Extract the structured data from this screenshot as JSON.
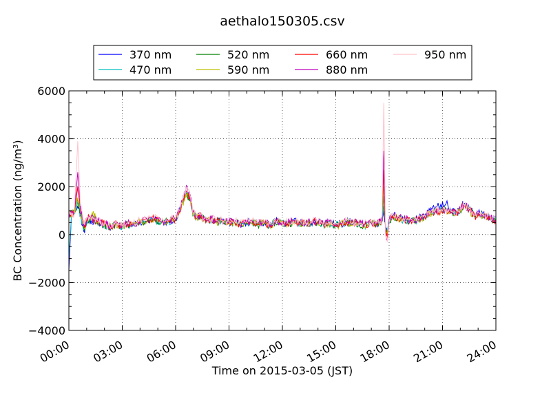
{
  "chart_data": {
    "type": "line",
    "title": "aethalo150305.csv",
    "xlabel": "Time on 2015-03-05 (JST)",
    "ylabel_main": "BC Concentration (ng/m",
    "ylabel_sup": "3",
    "ylabel_close": ")",
    "xlim": [
      0,
      24
    ],
    "ylim": [
      -4000,
      6000
    ],
    "grid": true,
    "legend_position": "top",
    "x_ticks": [
      0,
      3,
      6,
      9,
      12,
      15,
      18,
      21,
      24
    ],
    "x_tick_labels": [
      "00:00",
      "03:00",
      "06:00",
      "09:00",
      "12:00",
      "15:00",
      "18:00",
      "21:00",
      "24:00"
    ],
    "y_ticks": [
      -4000,
      -2000,
      0,
      2000,
      4000,
      6000
    ],
    "y_tick_labels": [
      "−4000",
      "−2000",
      "0",
      "2000",
      "4000",
      "6000"
    ],
    "x_hours": [
      0.0,
      0.15,
      0.3,
      0.5,
      0.65,
      0.8,
      0.9,
      1.0,
      1.2,
      1.4,
      1.6,
      1.8,
      2.0,
      2.2,
      2.4,
      2.6,
      2.8,
      3.0,
      3.3,
      3.6,
      4.0,
      4.4,
      4.8,
      5.2,
      5.6,
      6.0,
      6.2,
      6.4,
      6.6,
      6.8,
      7.0,
      7.2,
      7.4,
      7.6,
      7.8,
      8.0,
      8.3,
      8.6,
      9.0,
      9.3,
      9.6,
      10.0,
      10.3,
      10.6,
      11.0,
      11.3,
      11.6,
      12.0,
      12.3,
      12.6,
      13.0,
      13.3,
      13.6,
      14.0,
      14.3,
      14.6,
      15.0,
      15.3,
      15.6,
      16.0,
      16.3,
      16.6,
      17.0,
      17.3,
      17.5,
      17.6,
      17.7,
      17.8,
      17.9,
      18.0,
      18.2,
      18.5,
      18.8,
      19.2,
      19.6,
      20.0,
      20.3,
      20.6,
      20.9,
      21.2,
      21.5,
      21.8,
      22.0,
      22.2,
      22.5,
      22.8,
      23.1,
      23.4,
      23.7,
      24.0
    ],
    "series": [
      {
        "name": "370 nm",
        "color": "#0000ff",
        "values": [
          -1500,
          900,
          1000,
          1200,
          800,
          300,
          200,
          500,
          600,
          550,
          500,
          450,
          400,
          350,
          300,
          450,
          400,
          350,
          450,
          400,
          500,
          550,
          600,
          500,
          550,
          600,
          1000,
          1400,
          1800,
          1600,
          900,
          700,
          800,
          650,
          600,
          650,
          550,
          600,
          500,
          550,
          450,
          500,
          550,
          450,
          500,
          400,
          550,
          500,
          450,
          550,
          500,
          450,
          500,
          550,
          450,
          500,
          400,
          450,
          550,
          500,
          450,
          400,
          500,
          450,
          550,
          600,
          1000,
          300,
          100,
          600,
          800,
          700,
          650,
          600,
          650,
          800,
          1000,
          1150,
          1250,
          1300,
          1000,
          900,
          1100,
          1300,
          1100,
          800,
          900,
          800,
          700,
          600
        ]
      },
      {
        "name": "470 nm",
        "color": "#00bfbf",
        "values": [
          -1000,
          880,
          950,
          1300,
          850,
          350,
          250,
          550,
          600,
          550,
          500,
          480,
          400,
          330,
          300,
          430,
          380,
          330,
          430,
          400,
          520,
          560,
          620,
          480,
          540,
          620,
          950,
          1350,
          1750,
          1550,
          850,
          680,
          780,
          640,
          580,
          630,
          520,
          580,
          480,
          530,
          440,
          480,
          530,
          430,
          480,
          380,
          530,
          480,
          440,
          520,
          480,
          430,
          480,
          520,
          430,
          480,
          380,
          430,
          520,
          480,
          430,
          380,
          480,
          430,
          520,
          580,
          1200,
          250,
          50,
          580,
          760,
          680,
          620,
          580,
          620,
          750,
          900,
          1000,
          1050,
          1100,
          950,
          880,
          1050,
          1250,
          1050,
          780,
          860,
          780,
          680,
          580
        ]
      },
      {
        "name": "520 nm",
        "color": "#008000",
        "values": [
          800,
          870,
          940,
          1400,
          900,
          400,
          300,
          600,
          620,
          800,
          500,
          500,
          420,
          350,
          300,
          420,
          380,
          350,
          420,
          410,
          530,
          570,
          640,
          500,
          560,
          640,
          950,
          1300,
          1700,
          1500,
          850,
          700,
          760,
          630,
          570,
          620,
          510,
          570,
          470,
          520,
          430,
          470,
          520,
          420,
          470,
          370,
          520,
          470,
          430,
          510,
          470,
          420,
          470,
          510,
          420,
          470,
          370,
          420,
          510,
          470,
          420,
          370,
          470,
          420,
          510,
          570,
          1600,
          200,
          0,
          570,
          750,
          670,
          610,
          570,
          610,
          740,
          880,
          960,
          1000,
          1050,
          920,
          860,
          1030,
          1230,
          1030,
          770,
          850,
          770,
          670,
          570
        ]
      },
      {
        "name": "590 nm",
        "color": "#bfbf00",
        "values": [
          820,
          860,
          930,
          1500,
          950,
          450,
          350,
          600,
          650,
          900,
          520,
          510,
          430,
          360,
          310,
          430,
          390,
          360,
          430,
          420,
          540,
          580,
          650,
          510,
          570,
          650,
          960,
          1300,
          1700,
          1500,
          860,
          710,
          770,
          640,
          580,
          630,
          520,
          580,
          480,
          530,
          440,
          480,
          530,
          430,
          480,
          380,
          530,
          480,
          440,
          520,
          480,
          430,
          480,
          520,
          430,
          480,
          380,
          430,
          520,
          480,
          430,
          380,
          480,
          430,
          520,
          580,
          2000,
          150,
          -50,
          580,
          760,
          680,
          620,
          580,
          620,
          750,
          880,
          950,
          980,
          1020,
          900,
          850,
          1020,
          1220,
          1020,
          760,
          840,
          760,
          660,
          560
        ]
      },
      {
        "name": "660 nm",
        "color": "#ff0000",
        "values": [
          850,
          850,
          920,
          2000,
          1000,
          500,
          350,
          650,
          700,
          600,
          550,
          520,
          450,
          380,
          320,
          450,
          400,
          370,
          450,
          430,
          560,
          600,
          670,
          520,
          580,
          660,
          980,
          1350,
          1800,
          1550,
          880,
          720,
          790,
          650,
          600,
          650,
          540,
          600,
          500,
          550,
          450,
          500,
          550,
          450,
          500,
          400,
          550,
          500,
          450,
          540,
          500,
          450,
          500,
          540,
          450,
          500,
          400,
          450,
          540,
          500,
          450,
          400,
          500,
          450,
          540,
          600,
          2700,
          100,
          -100,
          600,
          780,
          700,
          640,
          600,
          640,
          770,
          900,
          970,
          1000,
          1040,
          920,
          870,
          1040,
          1240,
          1040,
          780,
          860,
          780,
          680,
          580
        ]
      },
      {
        "name": "880 nm",
        "color": "#bf00bf",
        "values": [
          870,
          850,
          900,
          2600,
          1100,
          550,
          400,
          680,
          720,
          650,
          570,
          540,
          460,
          390,
          330,
          460,
          410,
          380,
          460,
          440,
          580,
          620,
          690,
          540,
          600,
          680,
          1000,
          1400,
          2050,
          1650,
          900,
          740,
          810,
          670,
          620,
          670,
          560,
          620,
          520,
          570,
          470,
          520,
          570,
          470,
          520,
          420,
          570,
          520,
          470,
          560,
          520,
          470,
          520,
          560,
          470,
          520,
          420,
          470,
          560,
          520,
          470,
          420,
          520,
          470,
          560,
          620,
          3500,
          50,
          -200,
          620,
          800,
          720,
          660,
          620,
          660,
          790,
          920,
          990,
          1020,
          1060,
          940,
          890,
          1060,
          1260,
          1060,
          800,
          880,
          800,
          700,
          600
        ]
      },
      {
        "name": "950 nm",
        "color": "#ffc0cb",
        "values": [
          880,
          840,
          880,
          3900,
          1200,
          600,
          450,
          700,
          750,
          700,
          600,
          560,
          480,
          400,
          340,
          480,
          420,
          390,
          480,
          450,
          600,
          640,
          710,
          560,
          620,
          700,
          1020,
          1450,
          2000,
          1700,
          920,
          760,
          830,
          690,
          640,
          690,
          580,
          640,
          540,
          590,
          490,
          540,
          590,
          490,
          540,
          440,
          590,
          540,
          490,
          580,
          540,
          490,
          540,
          580,
          490,
          540,
          440,
          490,
          580,
          540,
          490,
          440,
          540,
          490,
          580,
          640,
          5500,
          0,
          -300,
          640,
          820,
          740,
          680,
          640,
          680,
          810,
          940,
          1010,
          1040,
          1080,
          960,
          910,
          1080,
          1280,
          1080,
          820,
          900,
          820,
          720,
          620
        ]
      }
    ]
  }
}
